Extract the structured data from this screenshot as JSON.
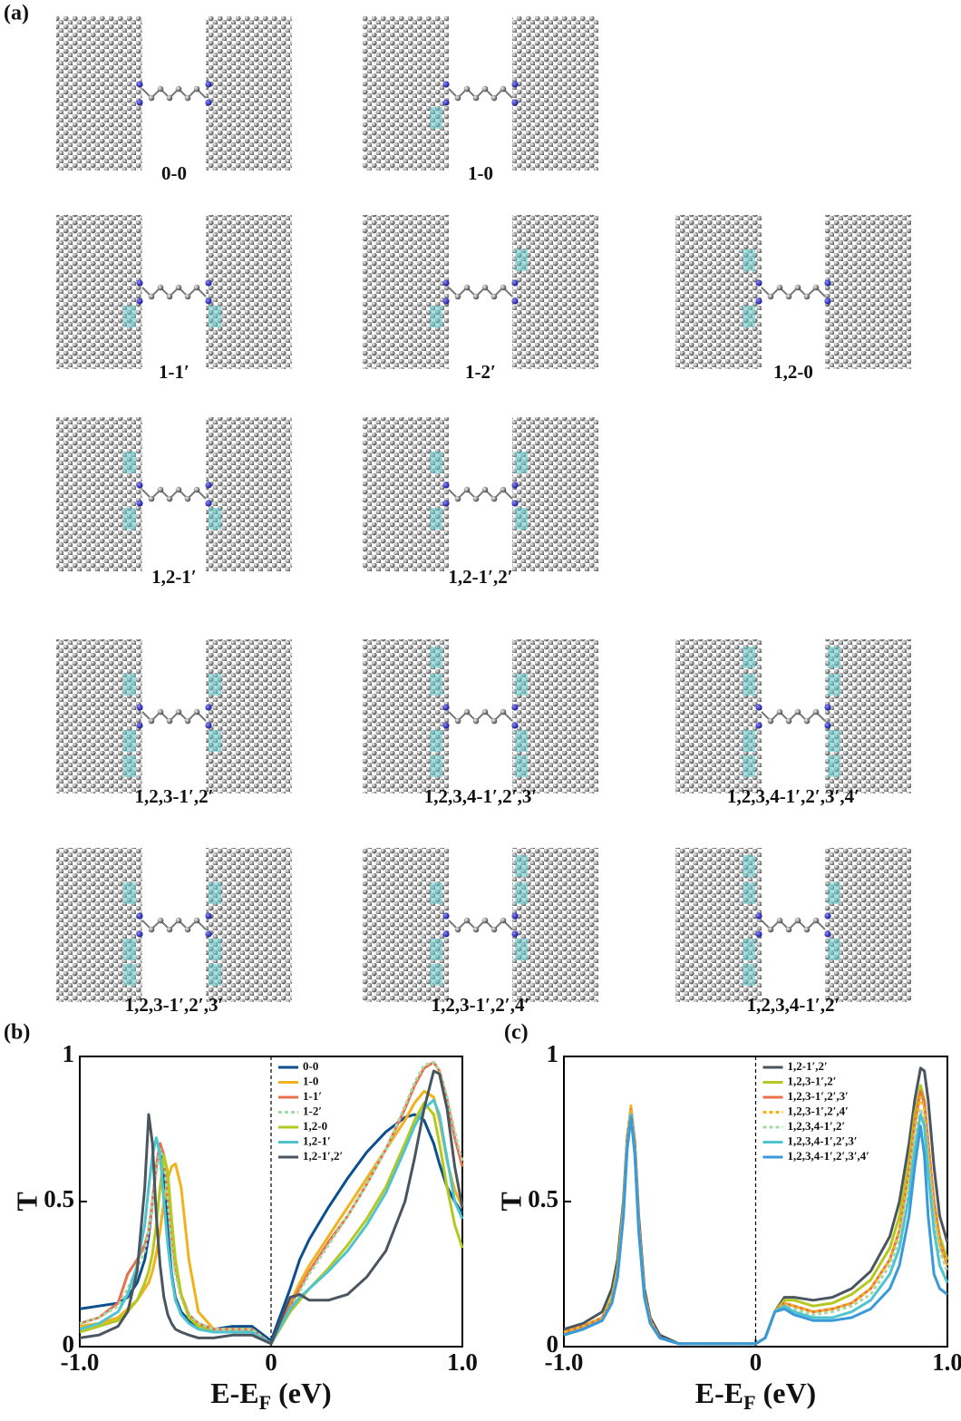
{
  "panel_a": {
    "panel_label": "(a)",
    "labels": [
      "0-0",
      "1-0",
      "1-1′",
      "1-2′",
      "1,2-0",
      "1,2-1′",
      "1,2-1′,2′",
      "1,2,3-1′,2′",
      "1,2,3,4-1′,2′,3′",
      "1,2,3,4-1′,2′,3′,4′",
      "1,2,3-1′,2′,3′",
      "1,2,3-1′,2′,4′",
      "1,2,3,4-1′,2′"
    ]
  },
  "chart_data": [
    {
      "type": "line",
      "panel_label": "(b)",
      "ylabel": "T",
      "xlabel": [
        "E-E",
        "F",
        " (eV)"
      ],
      "xlim": [
        -1,
        1
      ],
      "ylim": [
        0,
        1
      ],
      "xticks": [
        {
          "value": -1,
          "label": "-1.0"
        },
        0,
        {
          "value": 1,
          "label": "1.0"
        }
      ],
      "yticks": [
        0,
        0.5,
        1
      ],
      "vline": 0,
      "legend": "upper-center",
      "x": [
        -1,
        -0.9,
        -0.8,
        -0.75,
        -0.7,
        -0.66,
        -0.64,
        -0.62,
        -0.6,
        -0.58,
        -0.56,
        -0.54,
        -0.52,
        -0.5,
        -0.47,
        -0.43,
        -0.38,
        -0.3,
        -0.2,
        -0.1,
        0,
        0.1,
        0.15,
        0.2,
        0.3,
        0.4,
        0.5,
        0.6,
        0.7,
        0.75,
        0.8,
        0.85,
        0.88,
        0.92,
        0.96,
        1.0
      ],
      "series": [
        {
          "name": "0-0",
          "color": "#0b4f8f",
          "dashed": false,
          "values": [
            0.13,
            0.14,
            0.15,
            0.17,
            0.22,
            0.3,
            0.38,
            0.5,
            0.62,
            0.7,
            0.6,
            0.4,
            0.25,
            0.17,
            0.12,
            0.09,
            0.07,
            0.06,
            0.07,
            0.07,
            0.02,
            0.2,
            0.3,
            0.37,
            0.48,
            0.58,
            0.67,
            0.74,
            0.79,
            0.8,
            0.78,
            0.7,
            0.63,
            0.55,
            0.5,
            0.46
          ]
        },
        {
          "name": "1-0",
          "color": "#f2b21b",
          "dashed": false,
          "values": [
            0.07,
            0.08,
            0.1,
            0.13,
            0.16,
            0.2,
            0.22,
            0.26,
            0.32,
            0.4,
            0.5,
            0.58,
            0.62,
            0.63,
            0.55,
            0.3,
            0.12,
            0.06,
            0.06,
            0.06,
            0.01,
            0.15,
            0.22,
            0.28,
            0.38,
            0.48,
            0.58,
            0.68,
            0.78,
            0.84,
            0.88,
            0.86,
            0.78,
            0.64,
            0.54,
            0.48
          ]
        },
        {
          "name": "1-1′",
          "color": "#e8704a",
          "dashed": false,
          "values": [
            0.08,
            0.1,
            0.15,
            0.25,
            0.3,
            0.35,
            0.4,
            0.5,
            0.62,
            0.7,
            0.66,
            0.52,
            0.38,
            0.27,
            0.18,
            0.11,
            0.08,
            0.06,
            0.06,
            0.06,
            0.01,
            0.14,
            0.2,
            0.26,
            0.36,
            0.45,
            0.56,
            0.68,
            0.82,
            0.9,
            0.96,
            0.98,
            0.95,
            0.85,
            0.72,
            0.62
          ]
        },
        {
          "name": "1-2′",
          "color": "#a8d8a8",
          "dashed": true,
          "values": [
            0.08,
            0.1,
            0.14,
            0.2,
            0.27,
            0.33,
            0.4,
            0.5,
            0.6,
            0.68,
            0.64,
            0.5,
            0.36,
            0.25,
            0.17,
            0.11,
            0.08,
            0.06,
            0.06,
            0.06,
            0.01,
            0.13,
            0.19,
            0.25,
            0.35,
            0.45,
            0.56,
            0.68,
            0.83,
            0.91,
            0.97,
            0.98,
            0.95,
            0.86,
            0.74,
            0.64
          ]
        },
        {
          "name": "1,2-0",
          "color": "#b5c820",
          "dashed": false,
          "values": [
            0.05,
            0.07,
            0.09,
            0.12,
            0.16,
            0.22,
            0.26,
            0.32,
            0.42,
            0.55,
            0.66,
            0.6,
            0.44,
            0.3,
            0.18,
            0.1,
            0.07,
            0.05,
            0.05,
            0.05,
            0.01,
            0.12,
            0.16,
            0.2,
            0.27,
            0.35,
            0.44,
            0.55,
            0.7,
            0.78,
            0.84,
            0.8,
            0.7,
            0.55,
            0.42,
            0.34
          ]
        },
        {
          "name": "1,2-1′",
          "color": "#4fc4cf",
          "dashed": false,
          "values": [
            0.06,
            0.08,
            0.12,
            0.18,
            0.28,
            0.42,
            0.55,
            0.66,
            0.72,
            0.66,
            0.5,
            0.35,
            0.24,
            0.16,
            0.11,
            0.08,
            0.06,
            0.05,
            0.05,
            0.05,
            0.01,
            0.13,
            0.17,
            0.2,
            0.26,
            0.33,
            0.42,
            0.53,
            0.68,
            0.76,
            0.82,
            0.85,
            0.8,
            0.65,
            0.5,
            0.44
          ]
        },
        {
          "name": "1,2-1′,2′",
          "color": "#4a5560",
          "dashed": false,
          "values": [
            0.03,
            0.04,
            0.07,
            0.12,
            0.26,
            0.55,
            0.8,
            0.7,
            0.45,
            0.28,
            0.17,
            0.11,
            0.08,
            0.06,
            0.05,
            0.04,
            0.03,
            0.03,
            0.04,
            0.04,
            0.01,
            0.17,
            0.18,
            0.16,
            0.16,
            0.18,
            0.24,
            0.33,
            0.5,
            0.65,
            0.82,
            0.95,
            0.94,
            0.82,
            0.62,
            0.48
          ]
        }
      ]
    },
    {
      "type": "line",
      "panel_label": "(c)",
      "ylabel": "T",
      "xlabel": [
        "E-E",
        "F",
        " (eV)"
      ],
      "xlim": [
        -1,
        1
      ],
      "ylim": [
        0,
        1
      ],
      "xticks": [
        {
          "value": -1,
          "label": "-1.0"
        },
        0,
        {
          "value": 1,
          "label": "1.0"
        }
      ],
      "yticks": [
        0,
        0.5,
        1
      ],
      "vline": 0,
      "legend": "upper-center",
      "x": [
        -1,
        -0.9,
        -0.8,
        -0.75,
        -0.72,
        -0.69,
        -0.67,
        -0.65,
        -0.63,
        -0.61,
        -0.58,
        -0.55,
        -0.5,
        -0.4,
        -0.3,
        -0.2,
        -0.1,
        0,
        0.05,
        0.1,
        0.15,
        0.2,
        0.3,
        0.4,
        0.5,
        0.6,
        0.7,
        0.75,
        0.8,
        0.83,
        0.86,
        0.88,
        0.9,
        0.93,
        0.96,
        1.0
      ],
      "series": [
        {
          "name": "1,2-1′,2′",
          "color": "#4a5560",
          "dashed": false,
          "values": [
            0.06,
            0.08,
            0.12,
            0.2,
            0.3,
            0.5,
            0.72,
            0.82,
            0.7,
            0.45,
            0.2,
            0.1,
            0.04,
            0.01,
            0.01,
            0.01,
            0.01,
            0.01,
            0.03,
            0.12,
            0.17,
            0.17,
            0.16,
            0.17,
            0.2,
            0.26,
            0.38,
            0.5,
            0.7,
            0.85,
            0.96,
            0.95,
            0.85,
            0.62,
            0.45,
            0.36
          ]
        },
        {
          "name": "1,2,3-1′,2′",
          "color": "#b5c820",
          "dashed": false,
          "values": [
            0.05,
            0.07,
            0.1,
            0.17,
            0.27,
            0.48,
            0.7,
            0.81,
            0.68,
            0.42,
            0.18,
            0.09,
            0.03,
            0.01,
            0.01,
            0.01,
            0.01,
            0.01,
            0.03,
            0.12,
            0.16,
            0.16,
            0.14,
            0.15,
            0.18,
            0.23,
            0.34,
            0.45,
            0.64,
            0.8,
            0.9,
            0.85,
            0.7,
            0.5,
            0.38,
            0.3
          ]
        },
        {
          "name": "1,2,3-1′,2′,3′",
          "color": "#e8704a",
          "dashed": false,
          "values": [
            0.05,
            0.07,
            0.1,
            0.16,
            0.26,
            0.47,
            0.7,
            0.82,
            0.68,
            0.42,
            0.18,
            0.09,
            0.03,
            0.01,
            0.01,
            0.01,
            0.01,
            0.01,
            0.03,
            0.12,
            0.15,
            0.14,
            0.12,
            0.13,
            0.15,
            0.2,
            0.3,
            0.4,
            0.6,
            0.77,
            0.88,
            0.84,
            0.7,
            0.5,
            0.36,
            0.28
          ]
        },
        {
          "name": "1,2,3-1′,2′,4′",
          "color": "#f2b21b",
          "dashed": true,
          "values": [
            0.05,
            0.07,
            0.1,
            0.16,
            0.26,
            0.47,
            0.71,
            0.83,
            0.68,
            0.42,
            0.18,
            0.09,
            0.03,
            0.01,
            0.01,
            0.01,
            0.01,
            0.01,
            0.03,
            0.12,
            0.15,
            0.14,
            0.12,
            0.13,
            0.15,
            0.2,
            0.3,
            0.4,
            0.6,
            0.76,
            0.86,
            0.82,
            0.68,
            0.48,
            0.35,
            0.28
          ]
        },
        {
          "name": "1,2,3,4-1′,2′",
          "color": "#a8d8a8",
          "dashed": true,
          "values": [
            0.04,
            0.06,
            0.09,
            0.15,
            0.25,
            0.46,
            0.69,
            0.8,
            0.67,
            0.41,
            0.17,
            0.08,
            0.03,
            0.01,
            0.01,
            0.01,
            0.01,
            0.01,
            0.03,
            0.12,
            0.14,
            0.13,
            0.11,
            0.12,
            0.14,
            0.18,
            0.28,
            0.37,
            0.56,
            0.72,
            0.82,
            0.78,
            0.64,
            0.45,
            0.33,
            0.26
          ]
        },
        {
          "name": "1,2,3,4-1′,2′,3′",
          "color": "#4fc4cf",
          "dashed": false,
          "values": [
            0.04,
            0.06,
            0.09,
            0.15,
            0.24,
            0.45,
            0.69,
            0.8,
            0.66,
            0.4,
            0.17,
            0.08,
            0.03,
            0.01,
            0.01,
            0.01,
            0.01,
            0.01,
            0.03,
            0.12,
            0.14,
            0.12,
            0.1,
            0.1,
            0.12,
            0.16,
            0.25,
            0.34,
            0.52,
            0.68,
            0.8,
            0.76,
            0.6,
            0.4,
            0.28,
            0.22
          ]
        },
        {
          "name": "1,2,3,4-1′,2′,3′,4′",
          "color": "#3a9ad9",
          "dashed": false,
          "values": [
            0.04,
            0.06,
            0.09,
            0.15,
            0.24,
            0.45,
            0.68,
            0.79,
            0.66,
            0.4,
            0.17,
            0.08,
            0.03,
            0.01,
            0.01,
            0.01,
            0.01,
            0.01,
            0.03,
            0.12,
            0.13,
            0.11,
            0.09,
            0.09,
            0.1,
            0.13,
            0.2,
            0.28,
            0.45,
            0.62,
            0.76,
            0.66,
            0.45,
            0.25,
            0.2,
            0.18
          ]
        }
      ]
    }
  ]
}
